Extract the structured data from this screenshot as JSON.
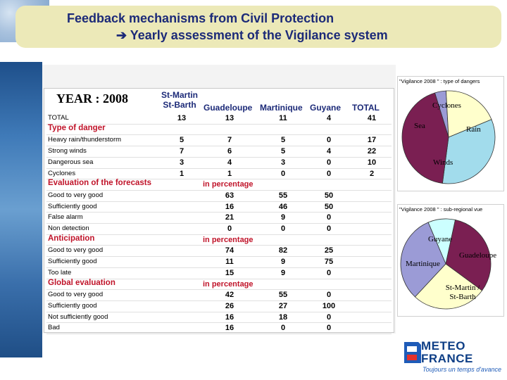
{
  "header": {
    "title_line1": "Feedback mechanisms from Civil Protection",
    "title_line2": "➔ Yearly assessment of the Vigilance system"
  },
  "table": {
    "year_label": "YEAR : 2008",
    "columns": [
      "St-Martin\nSt-Barth",
      "Guadeloupe",
      "Martinique",
      "Guyane",
      "TOTAL"
    ],
    "col_stmartin_l1": "St-Martin",
    "col_stmartin_l2": "St-Barth",
    "col_guadeloupe": "Guadeloupe",
    "col_martinique": "Martinique",
    "col_guyane": "Guyane",
    "col_total": "TOTAL",
    "in_percentage": "in percentage",
    "rows": [
      {
        "label": "TOTAL",
        "section": false,
        "values": [
          "13",
          "13",
          "11",
          "4",
          "41"
        ]
      },
      {
        "label": "Type of danger",
        "section": true,
        "values": [
          "",
          "",
          "",
          "",
          ""
        ]
      },
      {
        "label": "Heavy rain/thunderstorm",
        "section": false,
        "values": [
          "5",
          "7",
          "5",
          "0",
          "17"
        ]
      },
      {
        "label": "Strong winds",
        "section": false,
        "values": [
          "7",
          "6",
          "5",
          "4",
          "22"
        ]
      },
      {
        "label": "Dangerous sea",
        "section": false,
        "values": [
          "3",
          "4",
          "3",
          "0",
          "10"
        ]
      },
      {
        "label": "Cyclones",
        "section": false,
        "values": [
          "1",
          "1",
          "0",
          "0",
          "2"
        ]
      },
      {
        "label": "Evaluation of the forecasts",
        "section": true,
        "values": [
          "",
          "",
          "",
          "",
          ""
        ]
      },
      {
        "label": "Good to very good",
        "section": false,
        "values": [
          "",
          "63",
          "55",
          "50",
          ""
        ]
      },
      {
        "label": "Sufficiently good",
        "section": false,
        "values": [
          "",
          "16",
          "46",
          "50",
          ""
        ]
      },
      {
        "label": "False alarm",
        "section": false,
        "values": [
          "",
          "21",
          "9",
          "0",
          ""
        ]
      },
      {
        "label": "Non detection",
        "section": false,
        "values": [
          "",
          "0",
          "0",
          "0",
          ""
        ]
      },
      {
        "label": "Anticipation",
        "section": true,
        "values": [
          "",
          "",
          "",
          "",
          ""
        ]
      },
      {
        "label": "Good to very good",
        "section": false,
        "values": [
          "",
          "74",
          "82",
          "25",
          ""
        ]
      },
      {
        "label": "Sufficiently good",
        "section": false,
        "values": [
          "",
          "11",
          "9",
          "75",
          ""
        ]
      },
      {
        "label": "Too late",
        "section": false,
        "values": [
          "",
          "15",
          "9",
          "0",
          ""
        ]
      },
      {
        "label": "Global evaluation",
        "section": true,
        "values": [
          "",
          "",
          "",
          "",
          ""
        ]
      },
      {
        "label": "Good to very good",
        "section": false,
        "values": [
          "",
          "42",
          "55",
          "0",
          ""
        ]
      },
      {
        "label": "Sufficiently good",
        "section": false,
        "values": [
          "",
          "26",
          "27",
          "100",
          ""
        ]
      },
      {
        "label": "Not sufficiently good",
        "section": false,
        "values": [
          "",
          "16",
          "18",
          "0",
          ""
        ]
      },
      {
        "label": "Bad",
        "section": false,
        "values": [
          "",
          "16",
          "0",
          "0",
          ""
        ]
      }
    ]
  },
  "chart_data": [
    {
      "type": "pie",
      "title": "\"Vigilance 2008 \" : type of dangers",
      "categories": [
        "Cyclones",
        "Sea",
        "Rain",
        "Winds"
      ],
      "values": [
        2,
        10,
        17,
        22
      ],
      "colors": [
        "#9b9bd6",
        "#ffffcc",
        "#a2dcec",
        "#7a1f52"
      ]
    },
    {
      "type": "pie",
      "title": "\"Vigilance 2008 \" : sub-regional vue",
      "categories": [
        "Guyane",
        "Guadeloupe",
        "Martinique",
        "St-Martin / St-Barth"
      ],
      "values": [
        4,
        13,
        11,
        13
      ],
      "colors": [
        "#ccffff",
        "#7a1f52",
        "#ffffcc",
        "#9b9bd6"
      ]
    }
  ],
  "logo": {
    "line1": "METEO",
    "line2": "FRANCE",
    "slogan": "Toujours un temps d'avance"
  }
}
